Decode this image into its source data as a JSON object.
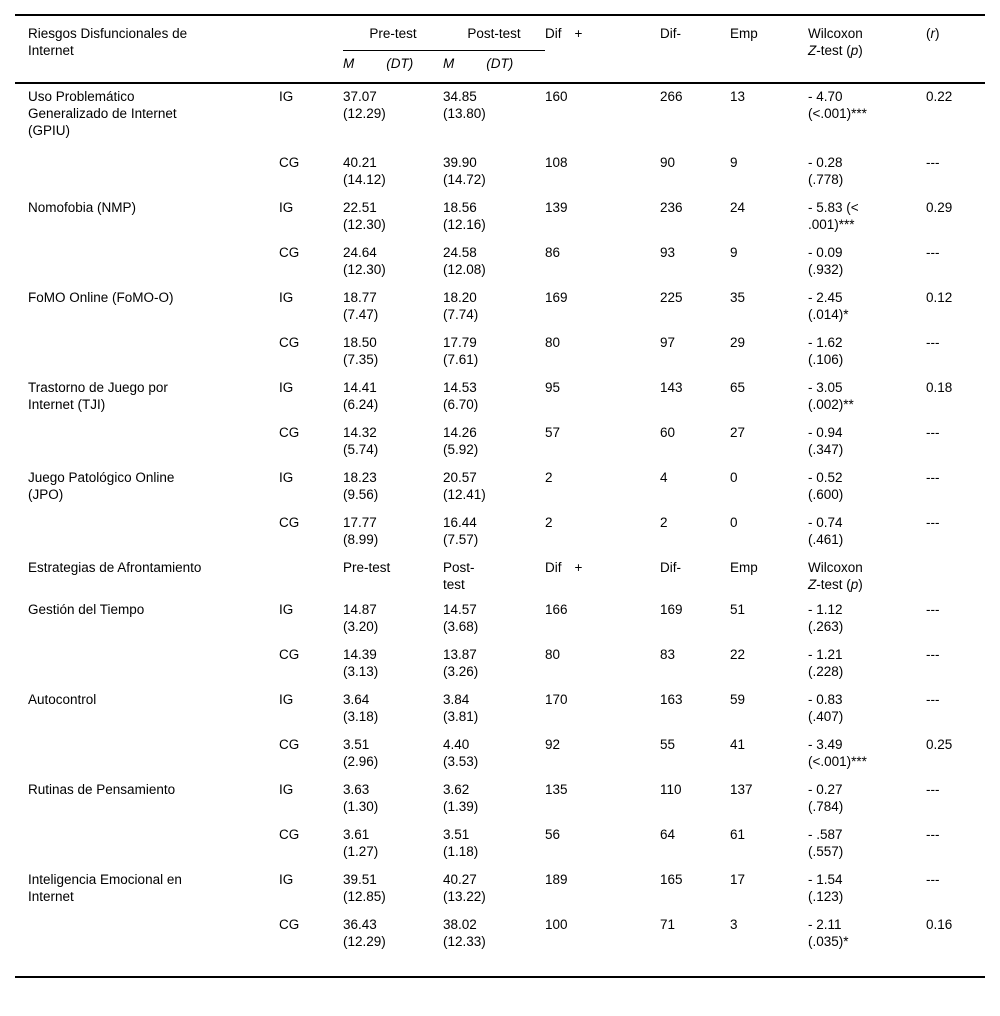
{
  "header": {
    "col1_title": "Riesgos Disfuncionales de Internet",
    "pretest": "Pre-test",
    "posttest": "Post-test",
    "mean_label": "M",
    "sd_label": "(DT)",
    "dif_plus": {
      "word": "Dif",
      "sign": "+"
    },
    "dif_minus": "Dif-",
    "emp": "Emp",
    "wilcoxon": {
      "line1": "Wilcoxon",
      "z": "Z",
      "mid": "-test (",
      "p": "p",
      "end": ")"
    },
    "r": {
      "open": "(",
      "letter": "r",
      "close": ")"
    }
  },
  "rows": [
    {
      "label": "Uso Problemático Generalizado de Internet (GPIU)",
      "group": "IG",
      "pre_m": "37.07",
      "pre_sd": "(12.29)",
      "post_m": "34.85",
      "post_sd": "(13.80)",
      "dif_plus": "160",
      "dif_minus": "266",
      "emp": "13",
      "w1": "- 4.70",
      "w2": "(<.001)***",
      "r": "0.22"
    },
    {
      "label": "",
      "group": "CG",
      "pre_m": "40.21",
      "pre_sd": "(14.12)",
      "post_m": "39.90",
      "post_sd": "(14.72)",
      "dif_plus": "108",
      "dif_minus": "90",
      "emp": "9",
      "w1": "- 0.28",
      "w2": "(.778)",
      "r": "---"
    },
    {
      "label": "Nomofobia (NMP)",
      "group": "IG",
      "pre_m": "22.51",
      "pre_sd": "(12.30)",
      "post_m": "18.56",
      "post_sd": "(12.16)",
      "dif_plus": "139",
      "dif_minus": "236",
      "emp": "24",
      "w1": "- 5.83 (<",
      "w2": ".001)***",
      "r": "0.29"
    },
    {
      "label": "",
      "group": "CG",
      "pre_m": "24.64",
      "pre_sd": "(12.30)",
      "post_m": "24.58",
      "post_sd": "(12.08)",
      "dif_plus": "86",
      "dif_minus": "93",
      "emp": "9",
      "w1": "- 0.09",
      "w2": "(.932)",
      "r": "---"
    },
    {
      "label": "FoMO Online (FoMO-O)",
      "group": "IG",
      "pre_m": "18.77",
      "pre_sd": "(7.47)",
      "post_m": "18.20",
      "post_sd": "(7.74)",
      "dif_plus": "169",
      "dif_minus": "225",
      "emp": "35",
      "w1": "- 2.45",
      "w2": "(.014)*",
      "r": "0.12"
    },
    {
      "label": "",
      "group": "CG",
      "pre_m": "18.50",
      "pre_sd": "(7.35)",
      "post_m": "17.79",
      "post_sd": "(7.61)",
      "dif_plus": "80",
      "dif_minus": "97",
      "emp": "29",
      "w1": "- 1.62",
      "w2": "(.106)",
      "r": "---"
    },
    {
      "label": "Trastorno de Juego por Internet (TJI)",
      "group": "IG",
      "pre_m": "14.41",
      "pre_sd": "(6.24)",
      "post_m": "14.53",
      "post_sd": "(6.70)",
      "dif_plus": "95",
      "dif_minus": "143",
      "emp": "65",
      "w1": "- 3.05",
      "w2": "(.002)**",
      "r": "0.18"
    },
    {
      "label": "",
      "group": "CG",
      "pre_m": "14.32",
      "pre_sd": "(5.74)",
      "post_m": "14.26",
      "post_sd": "(5.92)",
      "dif_plus": "57",
      "dif_minus": "60",
      "emp": "27",
      "w1": "- 0.94",
      "w2": "(.347)",
      "r": "---"
    },
    {
      "label": "Juego Patológico Online (JPO)",
      "group": "IG",
      "pre_m": "18.23",
      "pre_sd": "(9.56)",
      "post_m": "20.57",
      "post_sd": "(12.41)",
      "dif_plus": "2",
      "dif_minus": "4",
      "emp": "0",
      "w1": "- 0.52",
      "w2": "(.600)",
      "r": "---"
    },
    {
      "label": "",
      "group": "CG",
      "pre_m": "17.77",
      "pre_sd": "(8.99)",
      "post_m": "16.44",
      "post_sd": "(7.57)",
      "dif_plus": "2",
      "dif_minus": "2",
      "emp": "0",
      "w1": "- 0.74",
      "w2": "(.461)",
      "r": "---"
    }
  ],
  "section2_header": {
    "title": "Estrategias de Afrontamiento",
    "pretest": "Pre-test",
    "posttest": "Post-test",
    "dif_plus": {
      "word": "Dif",
      "sign": "+"
    },
    "dif_minus": "Dif-",
    "emp": "Emp",
    "wilcoxon": {
      "line1": "Wilcoxon",
      "z": "Z",
      "mid": "-test (",
      "p": "p",
      "end": ")"
    }
  },
  "rows2": [
    {
      "label": "Gestión del Tiempo",
      "group": "IG",
      "pre_m": "14.87",
      "pre_sd": "(3.20)",
      "post_m": "14.57",
      "post_sd": "(3.68)",
      "dif_plus": "166",
      "dif_minus": "169",
      "emp": "51",
      "w1": "- 1.12",
      "w2": "(.263)",
      "r": "---"
    },
    {
      "label": "",
      "group": "CG",
      "pre_m": "14.39",
      "pre_sd": "(3.13)",
      "post_m": "13.87",
      "post_sd": "(3.26)",
      "dif_plus": "80",
      "dif_minus": "83",
      "emp": "22",
      "w1": "- 1.21",
      "w2": "(.228)",
      "r": "---"
    },
    {
      "label": "Autocontrol",
      "group": "IG",
      "pre_m": "3.64",
      "pre_sd": "(3.18)",
      "post_m": "3.84",
      "post_sd": "(3.81)",
      "dif_plus": "170",
      "dif_minus": "163",
      "emp": "59",
      "w1": "- 0.83",
      "w2": "(.407)",
      "r": "---"
    },
    {
      "label": "",
      "group": "CG",
      "pre_m": "3.51",
      "pre_sd": "(2.96)",
      "post_m": "4.40",
      "post_sd": "(3.53)",
      "dif_plus": "92",
      "dif_minus": "55",
      "emp": "41",
      "w1": "- 3.49",
      "w2": "(<.001)***",
      "r": "0.25"
    },
    {
      "label": "Rutinas de Pensamiento",
      "group": "IG",
      "pre_m": "3.63",
      "pre_sd": "(1.30)",
      "post_m": "3.62",
      "post_sd": "(1.39)",
      "dif_plus": "135",
      "dif_minus": "110",
      "emp": "137",
      "w1": "- 0.27",
      "w2": "(.784)",
      "r": "---"
    },
    {
      "label": "",
      "group": "CG",
      "pre_m": "3.61",
      "pre_sd": "(1.27)",
      "post_m": "3.51",
      "post_sd": "(1.18)",
      "dif_plus": "56",
      "dif_minus": "64",
      "emp": "61",
      "w1": "- .587",
      "w2": "(.557)",
      "r": "---"
    },
    {
      "label": "Inteligencia Emocional en Internet",
      "group": "IG",
      "pre_m": "39.51",
      "pre_sd": "(12.85)",
      "post_m": "40.27",
      "post_sd": "(13.22)",
      "dif_plus": "189",
      "dif_minus": "165",
      "emp": "17",
      "w1": "- 1.54",
      "w2": "(.123)",
      "r": "---"
    },
    {
      "label": "",
      "group": "CG",
      "pre_m": "36.43",
      "pre_sd": "(12.29)",
      "post_m": "38.02",
      "post_sd": "(12.33)",
      "dif_plus": "100",
      "dif_minus": "71",
      "emp": "3",
      "w1": "- 2.11",
      "w2": "(.035)*",
      "r": "0.16"
    }
  ]
}
